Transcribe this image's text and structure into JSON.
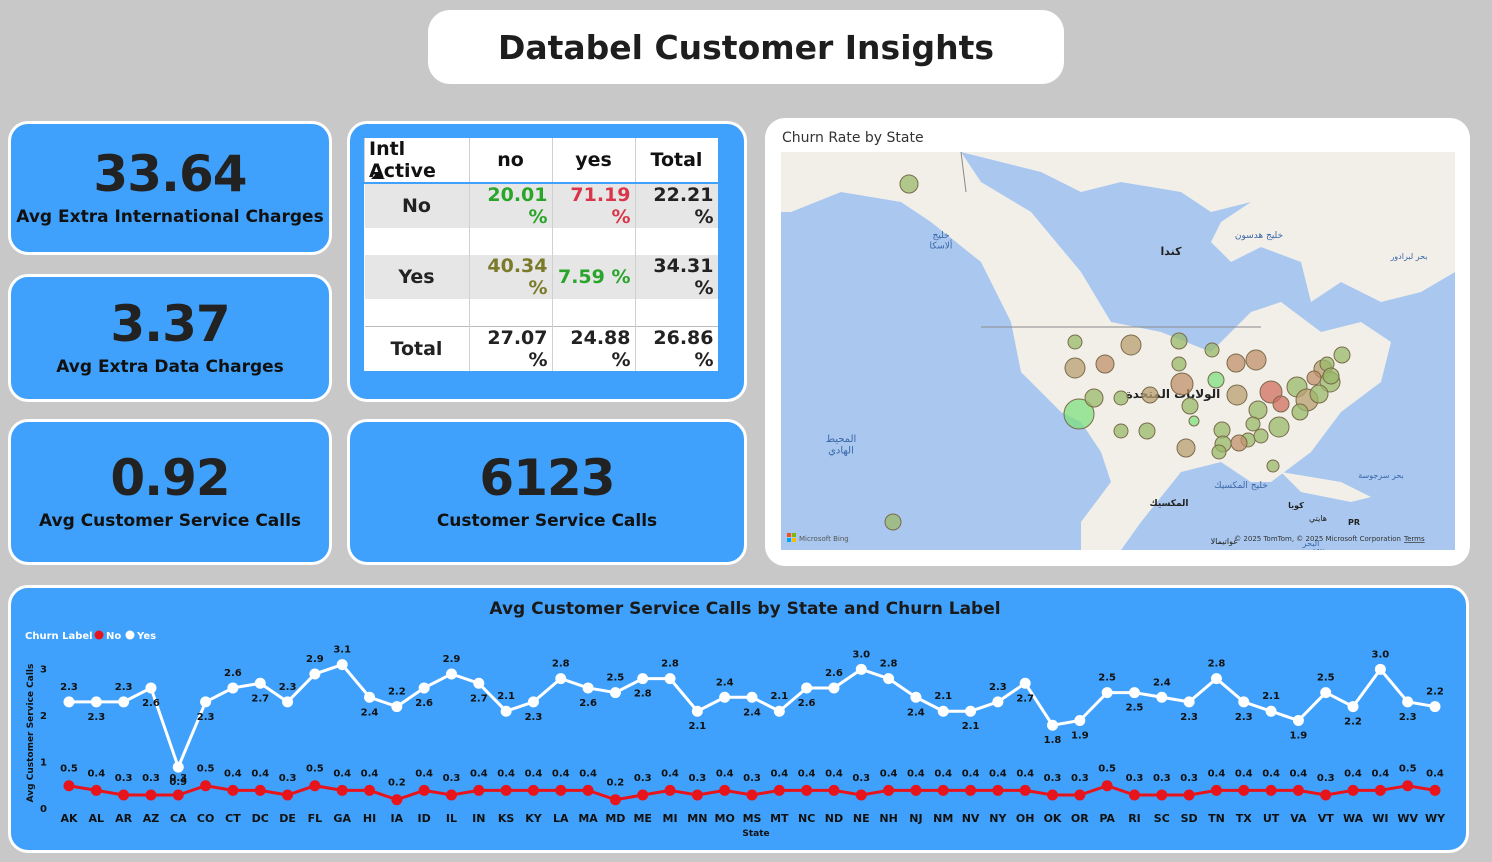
{
  "title": "Databel Customer Insights",
  "kpis": {
    "intl_charges": {
      "value": "33.64",
      "label": "Avg Extra International Charges"
    },
    "data_charges": {
      "value": "3.37",
      "label": "Avg Extra Data Charges"
    },
    "cs_calls_avg": {
      "value": "0.92",
      "label": "Avg Customer Service Calls"
    },
    "cs_calls_total": {
      "value": "6123",
      "label": "Customer Service Calls"
    }
  },
  "matrix": {
    "corner": "Intl Active",
    "columns": [
      "no",
      "yes",
      "Total"
    ],
    "rows": [
      {
        "label": "No",
        "values": [
          "20.01 %",
          "71.19 %",
          "22.21 %"
        ]
      },
      {
        "label": "Yes",
        "values": [
          "40.34 %",
          "7.59 %",
          "34.31 %"
        ]
      },
      {
        "label": "Total",
        "values": [
          "27.07 %",
          "24.88 %",
          "26.86 %"
        ]
      }
    ],
    "colors": {
      "low": "#2aa52a",
      "high": "#d9364a",
      "mid": "#7a7a2a",
      "text": "#222222"
    }
  },
  "map": {
    "title": "Churn Rate by State",
    "labels": {
      "canada": "كندا",
      "usa": "الولايات المتحدة",
      "mexico": "المكسيك",
      "pacific": "المحيط\nالهادي",
      "hudson": "خليج هدسون",
      "alaska": "خليج\nألاسكا",
      "labrador": "بحر لبرادور",
      "gulf_mexico": "خليج المكسيك",
      "sargasso": "بحر سرجوسة",
      "cuba": "كوبا",
      "haiti": "هايتي",
      "pr": "PR",
      "guatemala": "غواتيمالا",
      "caribbean": "البحر\nالكاريبي"
    },
    "bing": "Microsoft Bing",
    "copyright": "© 2025 TomTom, © 2025 Microsoft Corporation",
    "terms": "Terms",
    "colors": {
      "land": "#f2efe9",
      "water": "#aac8ef",
      "bubble_green": "#9ab96a",
      "bubble_red": "#d07060",
      "bubble_bright": "#7de07d"
    }
  },
  "chart": {
    "title": "Avg Customer Service Calls by State and Churn Label",
    "legend_title": "Churn Label",
    "xlabel": "State",
    "ylabel": "Avg Customer Service Calls"
  },
  "chart_data": {
    "type": "line",
    "categories": [
      "AK",
      "AL",
      "AR",
      "AZ",
      "CA",
      "CO",
      "CT",
      "DC",
      "DE",
      "FL",
      "GA",
      "HI",
      "IA",
      "ID",
      "IL",
      "IN",
      "KS",
      "KY",
      "LA",
      "MA",
      "MD",
      "ME",
      "MI",
      "MN",
      "MO",
      "MS",
      "MT",
      "NC",
      "ND",
      "NE",
      "NH",
      "NJ",
      "NM",
      "NV",
      "NY",
      "OH",
      "OK",
      "OR",
      "PA",
      "RI",
      "SC",
      "SD",
      "TN",
      "TX",
      "UT",
      "VA",
      "VT",
      "WA",
      "WI",
      "WV",
      "WY"
    ],
    "series": [
      {
        "name": "No",
        "color": "#e8141c",
        "values": [
          0.5,
          0.4,
          0.3,
          0.3,
          0.3,
          0.5,
          0.4,
          0.4,
          0.3,
          0.5,
          0.4,
          0.4,
          0.2,
          0.4,
          0.3,
          0.4,
          0.4,
          0.4,
          0.4,
          0.4,
          0.2,
          0.3,
          0.4,
          0.3,
          0.4,
          0.3,
          0.4,
          0.4,
          0.4,
          0.3,
          0.4,
          0.4,
          0.4,
          0.4,
          0.4,
          0.4,
          0.3,
          0.3,
          0.5,
          0.3,
          0.3,
          0.3,
          0.4,
          0.4,
          0.4,
          0.4,
          0.3,
          0.4,
          0.4,
          0.5,
          0.4
        ]
      },
      {
        "name": "Yes",
        "color": "#ffffff",
        "values": [
          2.3,
          2.3,
          2.3,
          2.6,
          0.9,
          2.3,
          2.6,
          2.7,
          2.3,
          2.9,
          3.1,
          2.4,
          2.2,
          2.6,
          2.9,
          2.7,
          2.1,
          2.3,
          2.8,
          2.6,
          2.5,
          2.8,
          2.8,
          2.1,
          2.4,
          2.4,
          2.1,
          2.6,
          2.6,
          3.0,
          2.8,
          2.4,
          2.1,
          2.1,
          2.3,
          2.7,
          1.8,
          1.9,
          2.5,
          2.5,
          2.4,
          2.3,
          2.8,
          2.3,
          2.1,
          1.9,
          2.5,
          2.2,
          3.0,
          2.3,
          2.2
        ]
      }
    ],
    "yticks": [
      0,
      1,
      2,
      3
    ],
    "ylim": [
      0,
      3.2
    ]
  }
}
